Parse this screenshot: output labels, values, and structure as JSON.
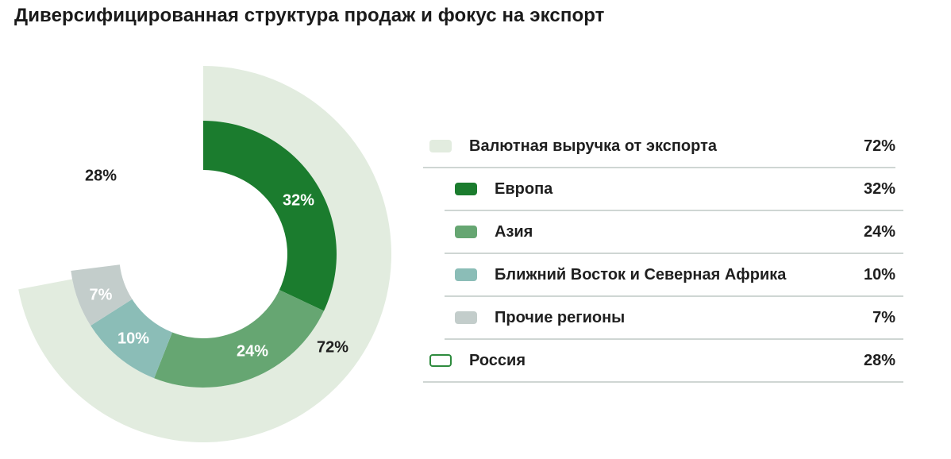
{
  "title": "Диверсифицированная структура продаж и фокус на экспорт",
  "colors": {
    "export": "#e2ecdf",
    "europe": "#1b7c2e",
    "asia": "#66a672",
    "mena": "#8bbdb7",
    "other": "#c3cdcb",
    "russia_border": "#2e8b3e",
    "divider": "#cfd6d3"
  },
  "chart_labels": {
    "russia": "28%",
    "export": "72%",
    "europe": "32%",
    "asia": "24%",
    "mena": "10%",
    "other": "7%"
  },
  "legend": {
    "rows": [
      {
        "name": "Валютная выручка от экспорта",
        "value": "72%"
      },
      {
        "name": "Европа",
        "value": "32%"
      },
      {
        "name": "Азия",
        "value": "24%"
      },
      {
        "name": "Ближний Восток и Северная Африка",
        "value": "10%"
      },
      {
        "name": "Прочие регионы",
        "value": "7%"
      },
      {
        "name": "Россия",
        "value": "28%"
      }
    ]
  },
  "chart_data": {
    "type": "pie",
    "subtype": "nested-donut",
    "title": "Диверсифицированная структура продаж и фокус на экспорт",
    "series": [
      {
        "name": "outer",
        "categories": [
          "Валютная выручка от экспорта",
          "Россия"
        ],
        "values": [
          72,
          28
        ],
        "colors": [
          "#e2ecdf",
          "transparent"
        ]
      },
      {
        "name": "inner",
        "categories": [
          "Европа",
          "Азия",
          "Ближний Восток и Северная Африка",
          "Прочие регионы"
        ],
        "values": [
          32,
          24,
          10,
          7
        ],
        "colors": [
          "#1b7c2e",
          "#66a672",
          "#8bbdb7",
          "#c3cdcb"
        ]
      }
    ],
    "unit": "%",
    "legend_position": "right"
  }
}
